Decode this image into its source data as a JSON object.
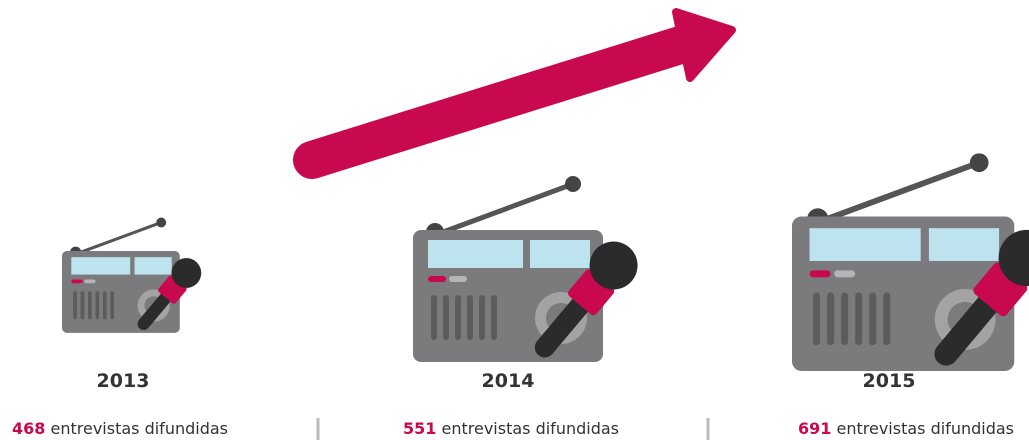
{
  "items": [
    {
      "year": "2013",
      "count": "468",
      "label": "entrevistas difundidas"
    },
    {
      "year": "2014",
      "count": "551",
      "label": "entrevistas difundidas"
    },
    {
      "year": "2015",
      "count": "691",
      "label": "entrevistas difundidas"
    }
  ]
}
